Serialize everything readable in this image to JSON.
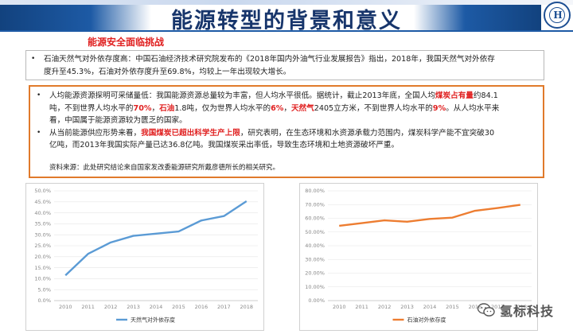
{
  "header": {
    "title": "能源转型的背景和意义"
  },
  "section": {
    "title": "能源安全面临挑战"
  },
  "box1": {
    "lines": [
      "石油天然气对外依存度高：中国石油经济技术研究院发布的《2018年国内外油气行业发展报告》指出，2018年，我国天然气对外依存",
      "度升至45.3%，石油对外依存度升至69.8%，均较上一年出现较大增长。"
    ]
  },
  "box2": {
    "p1": {
      "seg1": "人均能源资源探明可采储量低：我国能源资源总量较为丰富，但人均水平很低。据统计，截止2013年底，全国人均",
      "seg2": "煤炭占有量",
      "seg3": "约84.1",
      "seg4": "吨，不到世界人均水平的",
      "seg5": "70%",
      "seg6": "，",
      "seg7": "石油",
      "seg8": "1.8吨，仅为世界人均水平的",
      "seg9": "6%",
      "seg10": "，",
      "seg11": "天然气",
      "seg12": "2405立方米，不到世界人均水平的",
      "seg13": "9%",
      "seg14": "。从人均水平来",
      "seg15": "看，中国属于能源资源较为匮乏的国家。"
    },
    "p2": {
      "seg1": "从当前能源供应形势来看，",
      "seg2": "我国煤炭已超出科学生产上限",
      "seg3": "，研究表明，在生态环境和水资源承载力范围内，煤炭科学产能不宜突破30",
      "seg4": "亿吨，而2013年我国实际产量已达36.8亿吨。我国煤炭采出率低，导致生态环境和土地资源破坏严重。"
    },
    "source": "资料来源：此处研究结论来自国家发改委能源研究所戴彦德所长的相关研究。"
  },
  "chart_data": [
    {
      "type": "line",
      "x": [
        2010,
        2011,
        2012,
        2013,
        2014,
        2015,
        2016,
        2017,
        2018
      ],
      "series": [
        {
          "name": "天然气对外依存度",
          "values": [
            11.5,
            21.3,
            26.5,
            29.5,
            30.5,
            31.5,
            36.5,
            38.5,
            45.3
          ]
        }
      ],
      "ylim": [
        0,
        50
      ],
      "yticks": [
        "0.0%",
        "5.0%",
        "10.0%",
        "15.0%",
        "20.0%",
        "25.0%",
        "30.0%",
        "35.0%",
        "40.0%",
        "45.0%",
        "50.0%"
      ],
      "xticks": [
        "2010",
        "2011",
        "2012",
        "2013",
        "2014",
        "2015",
        "2016",
        "2017",
        "2018"
      ],
      "color": "#5b9bd5",
      "legend": "bottom"
    },
    {
      "type": "line",
      "x": [
        2010,
        2011,
        2012,
        2013,
        2014,
        2015,
        2016,
        2017,
        2018
      ],
      "series": [
        {
          "name": "石油对外依存度",
          "values": [
            54.5,
            56.5,
            58.5,
            57.5,
            59.5,
            60.5,
            65.5,
            67.5,
            69.8
          ]
        }
      ],
      "ylim": [
        0,
        80
      ],
      "yticks": [
        "0.00%",
        "10.00%",
        "20.00%",
        "30.00%",
        "40.00%",
        "50.00%",
        "60.00%",
        "70.00%",
        "80.00%"
      ],
      "xticks": [
        "2010",
        "2011",
        "2012",
        "2013",
        "2014",
        "2015",
        "2016",
        "2017",
        "2018"
      ],
      "color": "#ed7d31",
      "legend": "bottom"
    }
  ],
  "watermark": {
    "text": "氢标科技",
    "icon": "wechat-icon"
  }
}
